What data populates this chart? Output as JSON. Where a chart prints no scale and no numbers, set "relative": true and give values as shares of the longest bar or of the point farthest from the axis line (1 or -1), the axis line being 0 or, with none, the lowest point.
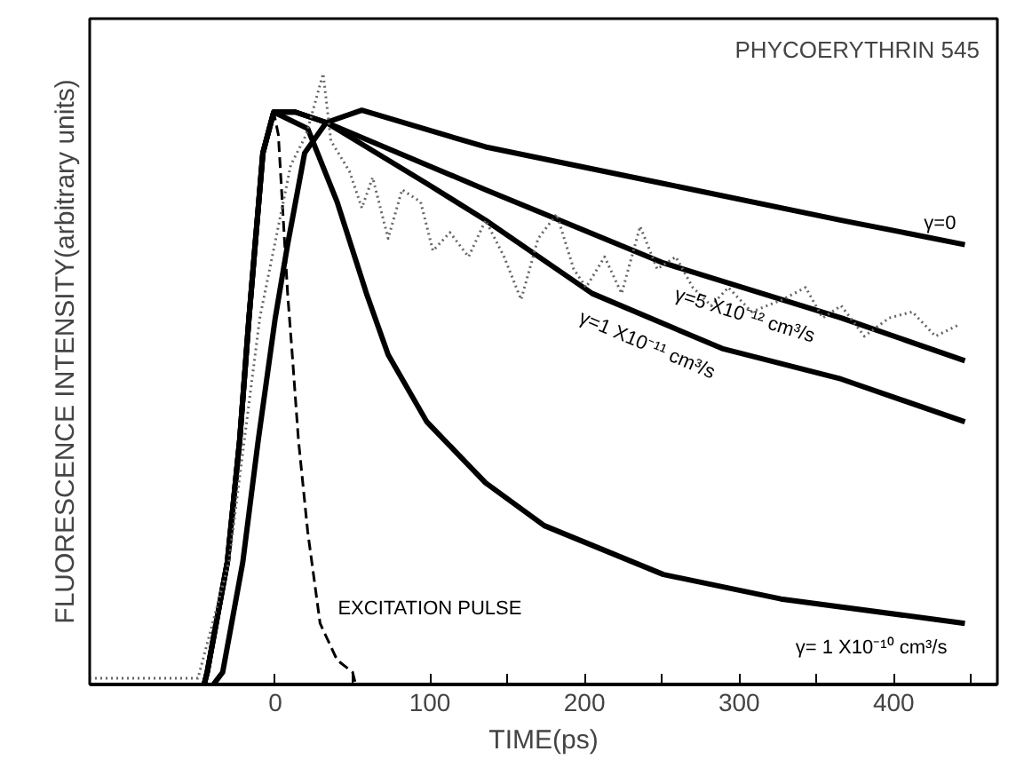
{
  "chart_data": {
    "type": "line",
    "relative": true,
    "xlabel": "TIME(ps)",
    "ylabel": "FLUORESCENCE INTENSITY(arbitrary units)",
    "xlim": [
      -120,
      467
    ],
    "xticks": [
      0,
      {
        "value": 50,
        "label": null
      },
      100,
      {
        "value": 150,
        "label": null
      },
      200,
      {
        "value": 250,
        "label": null
      },
      300,
      {
        "value": 350,
        "label": null
      },
      400,
      {
        "value": 450,
        "label": null
      }
    ],
    "grid": false,
    "marker": "none",
    "series": [
      {
        "name": "γ= 1 X10⁻¹⁰ cm³/s",
        "color": "#000000",
        "line_style": "solid",
        "x": [
          -46,
          -44,
          -31,
          -23,
          -17,
          -13,
          -8,
          -1,
          21,
          40,
          59,
          73,
          98,
          136,
          174,
          251,
          327,
          446
        ],
        "values": [
          0,
          0.02,
          0.2,
          0.4,
          0.6,
          0.72,
          0.87,
          0.937,
          0.91,
          0.79,
          0.64,
          0.54,
          0.43,
          0.33,
          0.26,
          0.18,
          0.14,
          0.1
        ]
      },
      {
        "name": "γ=5 X10⁻¹² cm³/s",
        "color": "#000000",
        "line_style": "solid",
        "x": [
          -46,
          -44,
          -31,
          -23,
          -17,
          -13,
          -8,
          -1,
          13,
          33,
          136,
          251,
          366,
          446
        ],
        "values": [
          0,
          0.02,
          0.2,
          0.4,
          0.6,
          0.72,
          0.87,
          0.937,
          0.937,
          0.92,
          0.81,
          0.69,
          0.6,
          0.53
        ]
      },
      {
        "name": "γ=1 X10⁻¹¹ cm³/s",
        "color": "#000000",
        "line_style": "solid",
        "x": [
          -46,
          -44,
          -31,
          -23,
          -17,
          -13,
          -8,
          -1,
          13,
          33,
          98,
          136,
          205,
          289,
          366,
          446
        ],
        "values": [
          0,
          0.02,
          0.2,
          0.4,
          0.6,
          0.72,
          0.87,
          0.937,
          0.937,
          0.92,
          0.82,
          0.76,
          0.64,
          0.55,
          0.5,
          0.43
        ]
      },
      {
        "name": "γ=0",
        "color": "#000000",
        "line_style": "solid",
        "x": [
          -40,
          -34,
          -21,
          -11,
          0,
          4,
          8,
          19,
          33,
          56,
          136,
          251,
          366,
          446
        ],
        "values": [
          0,
          0.02,
          0.2,
          0.4,
          0.6,
          0.66,
          0.72,
          0.87,
          0.92,
          0.94,
          0.88,
          0.82,
          0.76,
          0.72
        ]
      },
      {
        "name": "EXCITATION PULSE",
        "color": "#000000",
        "line_style": "dashed",
        "x": [
          -46,
          -44,
          -31,
          -23,
          -17,
          -13,
          -8,
          -1,
          2,
          8,
          11,
          15,
          21,
          29,
          40,
          50,
          52
        ],
        "values": [
          0,
          0.02,
          0.2,
          0.4,
          0.6,
          0.72,
          0.87,
          0.937,
          0.9,
          0.64,
          0.54,
          0.4,
          0.25,
          0.1,
          0.04,
          0.02,
          0
        ]
      },
      {
        "color": "#666666",
        "line_style": "dotted",
        "x": [
          -120,
          -90,
          -70,
          -50,
          -30,
          -10,
          10,
          20,
          31,
          36,
          48,
          56,
          63,
          73,
          82,
          94,
          102,
          113,
          125,
          136,
          148,
          159,
          170,
          182,
          193,
          201,
          213,
          224,
          236,
          247,
          259,
          270,
          282,
          293,
          308,
          328,
          343,
          354,
          366,
          381,
          397,
          412,
          427,
          443
        ],
        "values": [
          0.01,
          0.01,
          0.01,
          0.01,
          0.2,
          0.6,
          0.85,
          0.9,
          1.0,
          0.89,
          0.84,
          0.78,
          0.83,
          0.73,
          0.81,
          0.79,
          0.71,
          0.74,
          0.7,
          0.76,
          0.7,
          0.63,
          0.73,
          0.77,
          0.68,
          0.65,
          0.7,
          0.64,
          0.75,
          0.68,
          0.7,
          0.65,
          0.62,
          0.65,
          0.61,
          0.63,
          0.65,
          0.6,
          0.62,
          0.57,
          0.6,
          0.61,
          0.57,
          0.59
        ]
      }
    ],
    "annotations": [
      "PHYCOERYTHRIN 545"
    ]
  }
}
